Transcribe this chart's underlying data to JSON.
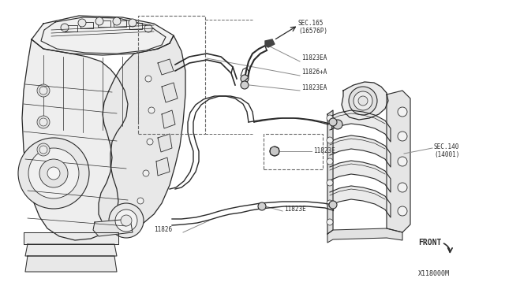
{
  "bg_color": "#ffffff",
  "line_color": "#2a2a2a",
  "gray_line": "#888888",
  "dashed_color": "#666666",
  "labels": {
    "sec165": "SEC.165\n(16576P)",
    "11823EA_top": "11823EA",
    "11826A": "11826+A",
    "11823EA_mid": "11823EA",
    "11823E_mid": "11823E",
    "11826": "11826",
    "11823E_bot": "11823E",
    "sec140": "SEC.140\n(14001)",
    "front": "FRONT",
    "x118000m": "X118000M"
  },
  "figsize": [
    6.4,
    3.72
  ],
  "dpi": 100
}
